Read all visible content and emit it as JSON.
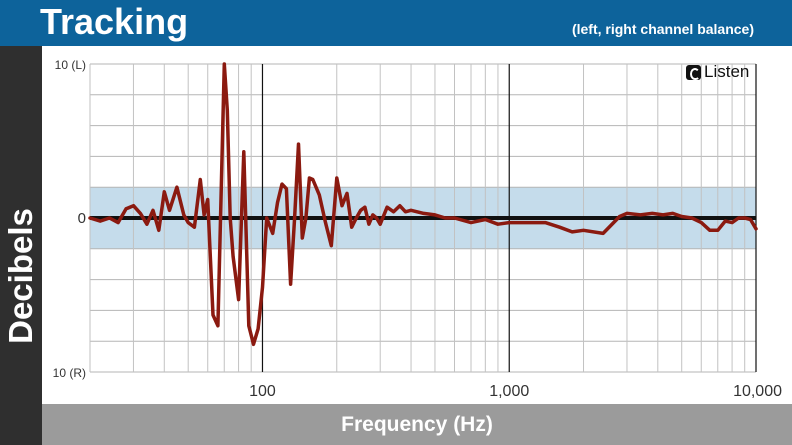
{
  "header": {
    "title": "Tracking",
    "subtitle": "(left, right channel balance)"
  },
  "logo": {
    "text": "Listen",
    "icon": "listen-logo-icon"
  },
  "colors": {
    "header_bg": "#0d639b",
    "ylabel_bg": "#2f2f2f",
    "xlabel_bg": "#9b9b9b",
    "band_fill": "#c5dceb",
    "line": "#8b1a10",
    "zero_line": "#111111"
  },
  "chart_data": {
    "type": "line",
    "xlabel": "Frequency (Hz)",
    "ylabel": "Decibels",
    "x_scale": "log",
    "xlim": [
      20,
      10000
    ],
    "ylim": [
      -10,
      10
    ],
    "x_ticks": [
      {
        "value": 100,
        "label": "100"
      },
      {
        "value": 1000,
        "label": "1,000"
      },
      {
        "value": 10000,
        "label": "10,000"
      }
    ],
    "y_ticks": [
      {
        "value": 10,
        "label": "10 (L)"
      },
      {
        "value": 0,
        "label": "0"
      },
      {
        "value": -10,
        "label": "10 (R)"
      }
    ],
    "band": [
      -2,
      2
    ],
    "grid": true,
    "series": [
      {
        "x": [
          20,
          22,
          24,
          26,
          28,
          30,
          32,
          34,
          36,
          38,
          40,
          42,
          45,
          48,
          50,
          53,
          56,
          58,
          60,
          63,
          66,
          70,
          72,
          74,
          76,
          80,
          84,
          88,
          92,
          96,
          100,
          104,
          110,
          115,
          120,
          125,
          130,
          135,
          140,
          145,
          150,
          155,
          160,
          170,
          180,
          190,
          200,
          210,
          220,
          230,
          240,
          250,
          260,
          270,
          280,
          290,
          300,
          320,
          340,
          360,
          380,
          400,
          450,
          500,
          550,
          600,
          700,
          800,
          900,
          1000,
          1200,
          1400,
          1600,
          1800,
          2000,
          2400,
          2800,
          3000,
          3400,
          3800,
          4200,
          4600,
          5000,
          5500,
          6000,
          6500,
          7000,
          7500,
          8000,
          8500,
          9000,
          9500,
          10000
        ],
        "y": [
          0,
          -0.2,
          0,
          -0.3,
          0.6,
          0.8,
          0.3,
          -0.4,
          0.5,
          -0.8,
          1.7,
          0.5,
          2.0,
          0.2,
          -0.3,
          -0.6,
          2.5,
          0.2,
          1.2,
          -6.3,
          -7.0,
          10,
          7.0,
          0,
          -2.5,
          -5.3,
          4.3,
          -7.0,
          -8.2,
          -7.2,
          -4.5,
          0,
          -1.0,
          1.0,
          2.2,
          1.9,
          -4.3,
          0,
          4.8,
          -1.3,
          0,
          2.6,
          2.5,
          1.5,
          -0.3,
          -1.8,
          2.6,
          0.8,
          1.6,
          -0.6,
          0,
          0.5,
          0.7,
          -0.4,
          0.2,
          0,
          -0.4,
          0.7,
          0.4,
          0.8,
          0.4,
          0.5,
          0.3,
          0.2,
          0,
          0,
          -0.3,
          -0.1,
          -0.4,
          -0.3,
          -0.3,
          -0.3,
          -0.6,
          -0.9,
          -0.8,
          -1.0,
          0.1,
          0.3,
          0.2,
          0.3,
          0.2,
          0.3,
          0.1,
          0,
          -0.3,
          -0.8,
          -0.8,
          -0.2,
          -0.3,
          0,
          0,
          -0.1,
          -0.7
        ]
      }
    ]
  }
}
